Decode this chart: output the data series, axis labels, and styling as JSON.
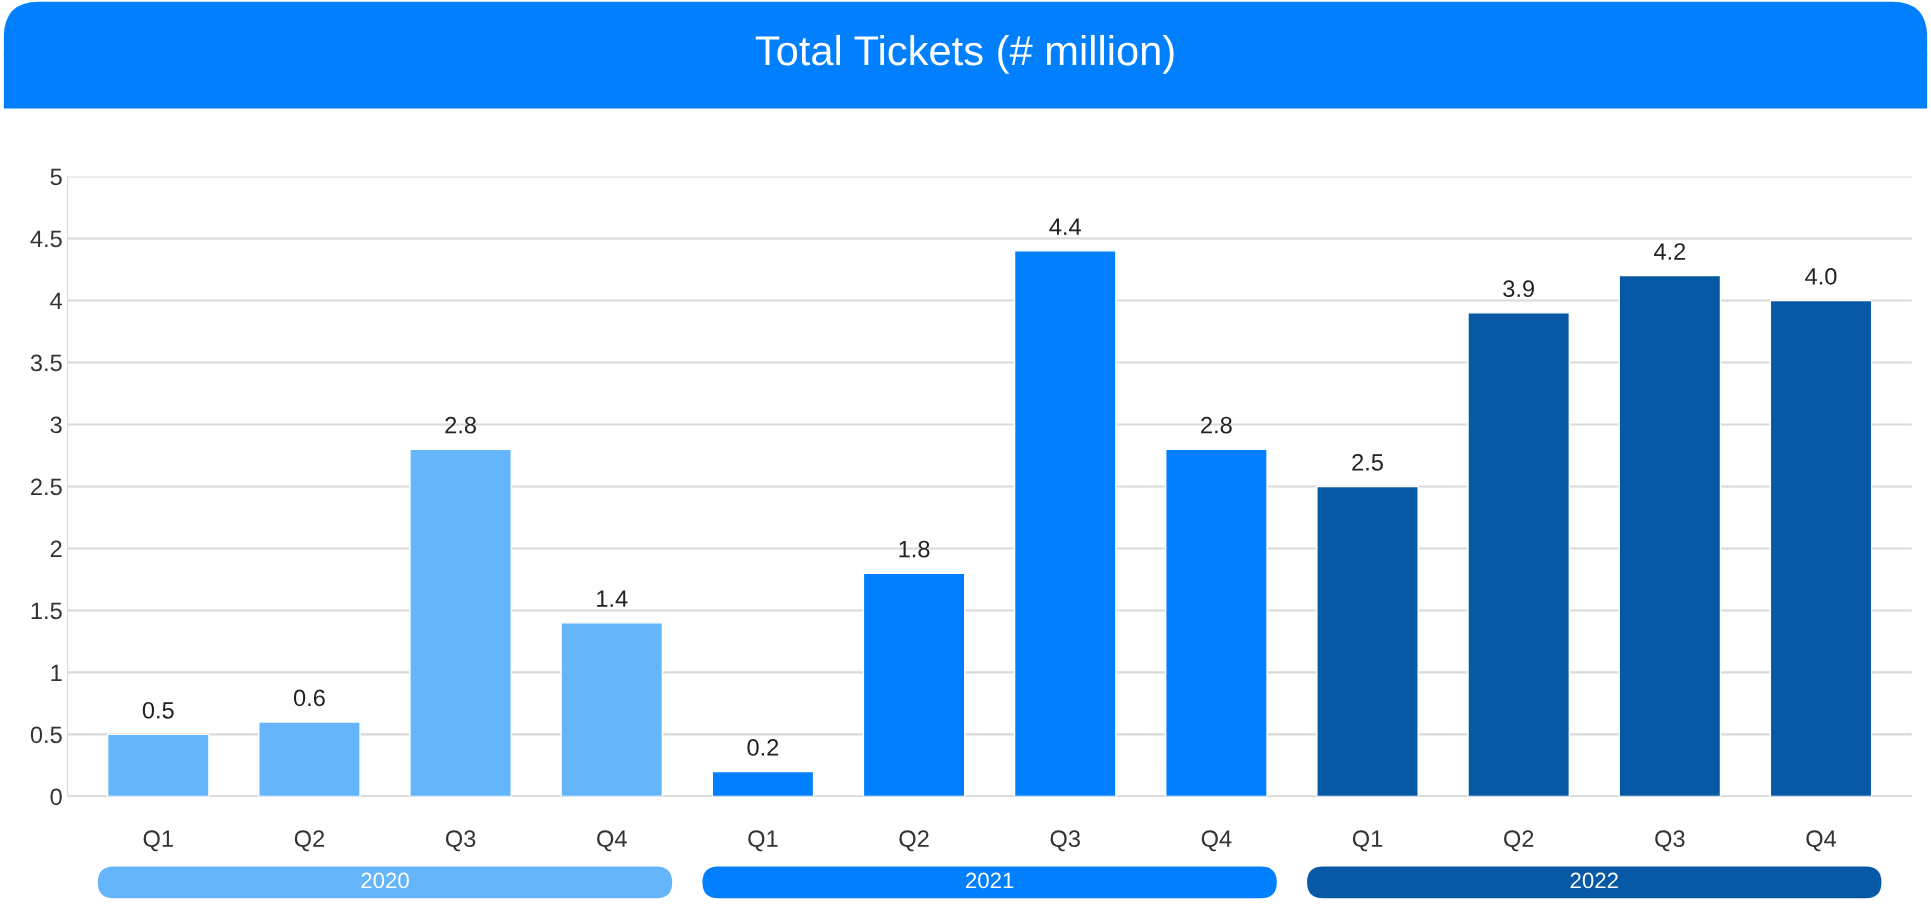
{
  "chart_data": {
    "type": "bar",
    "title": "Total Tickets (# million)",
    "categories": [
      "Q1",
      "Q2",
      "Q3",
      "Q4",
      "Q1",
      "Q2",
      "Q3",
      "Q4",
      "Q1",
      "Q2",
      "Q3",
      "Q4"
    ],
    "values": [
      0.5,
      0.6,
      2.8,
      1.4,
      0.2,
      1.8,
      4.4,
      2.8,
      2.5,
      3.9,
      4.2,
      4.0
    ],
    "colors": [
      "#64b5f9",
      "#64b5f9",
      "#64b5f9",
      "#64b5f9",
      "#0080ff",
      "#0080ff",
      "#0080ff",
      "#0080ff",
      "#0759a6",
      "#0759a6",
      "#0759a6",
      "#0759a6"
    ],
    "value_labels": [
      "0.5",
      "0.6",
      "2.8",
      "1.4",
      "0.2",
      "1.8",
      "4.4",
      "2.8",
      "2.5",
      "3.9",
      "4.2",
      "4.0"
    ],
    "annotations": [
      "2020",
      "2021",
      "2022"
    ],
    "ylim": [
      0,
      5
    ],
    "yticks": [
      0,
      0.5,
      1,
      1.5,
      2,
      2.5,
      3,
      3.5,
      4,
      4.5,
      5
    ],
    "grid": "y",
    "legend": false
  }
}
